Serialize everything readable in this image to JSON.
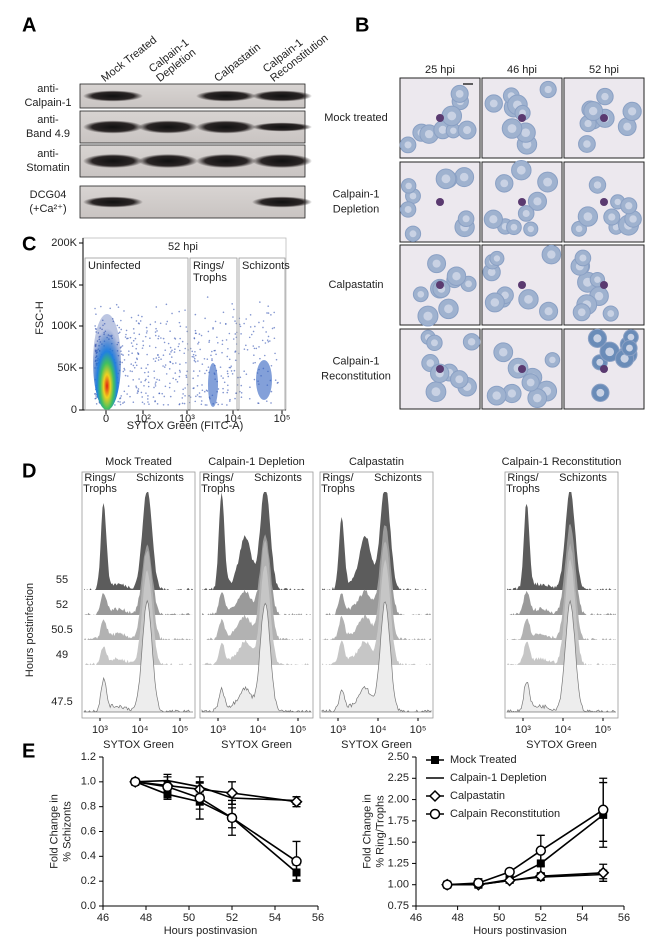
{
  "figure": {
    "A": {
      "label": "A",
      "lanes": [
        [
          "Mock Treated"
        ],
        [
          "Calpain-1",
          "Depletion"
        ],
        [
          "Calpastatin"
        ],
        [
          "Calpain-1",
          "Reconstitution"
        ]
      ],
      "blots": [
        [
          "anti-",
          "Calpain-1"
        ],
        [
          "anti-",
          "Band 4.9"
        ],
        [
          "anti-",
          "Stomatin"
        ],
        [
          "DCG04",
          "(+Ca²⁺)"
        ]
      ]
    },
    "B": {
      "label": "B",
      "columns": [
        "25 hpi",
        "46 hpi",
        "52 hpi"
      ],
      "rows": [
        [
          "Mock treated"
        ],
        [
          "Calpain-1",
          "Depletion"
        ],
        [
          "Calpastatin"
        ],
        [
          "Calpain-1",
          "Reconstitution"
        ]
      ]
    },
    "C": {
      "label": "C",
      "title": "52 hpi",
      "gates": [
        [
          "Uninfected"
        ],
        [
          "Rings/",
          "Trophs"
        ],
        [
          "Schizonts"
        ]
      ],
      "ylabel": "FSC-H",
      "xlabel": "SYTOX Green (FITC-A)",
      "yticks": [
        "0",
        "50K",
        "100K",
        "150K",
        "200K"
      ],
      "xticks": [
        "0",
        "10²",
        "10³",
        "10⁴",
        "10⁵"
      ]
    },
    "D": {
      "label": "D",
      "panels": [
        "Mock Treated",
        "Calpain-1 Depletion",
        "Calpastatin",
        "Calpain-1 Reconstitution"
      ],
      "gates": [
        [
          "Rings/",
          "Trophs"
        ],
        [
          "Schizonts"
        ]
      ],
      "hours": [
        "55",
        "52",
        "50.5",
        "49",
        "47.5"
      ],
      "ylabel": "Hours postinfection",
      "xlabel": "SYTOX Green",
      "xticks": [
        "10³",
        "10⁴",
        "10⁵"
      ]
    },
    "E": {
      "label": "E"
    }
  },
  "chart_data": [
    {
      "type": "line",
      "ylabel": [
        "Fold Change in",
        "% Schizonts"
      ],
      "xlabel": "Hours postinvasion",
      "x": [
        47.5,
        49,
        50.5,
        52,
        55
      ],
      "xlim": [
        46,
        56
      ],
      "xticks": [
        46,
        48,
        50,
        52,
        54,
        56
      ],
      "ylim": [
        0,
        1.2
      ],
      "yticks": [
        {
          "value": 0,
          "label": "0.0"
        },
        0.2,
        0.4,
        0.6,
        0.8,
        {
          "value": 1,
          "label": "1.0"
        },
        1.2
      ],
      "series": [
        {
          "marker": "square",
          "color": "#000000",
          "values": [
            1.0,
            0.9,
            0.84,
            0.71,
            0.27
          ],
          "errors": [
            0.02,
            0.04,
            0.06,
            0.08,
            0.06
          ]
        },
        {
          "marker": "none",
          "color": "#000000",
          "values": [
            1.0,
            1.01,
            0.96,
            0.87,
            0.85
          ],
          "errors": [
            0.02,
            0.03,
            0.04,
            0.05,
            0.03
          ]
        },
        {
          "marker": "diamond",
          "color": "#000000",
          "values": [
            1.0,
            0.97,
            0.94,
            0.91,
            0.84
          ],
          "errors": [
            0.02,
            0.03,
            0.05,
            0.09,
            0.04
          ]
        },
        {
          "marker": "circle",
          "color": "#000000",
          "values": [
            1.0,
            0.96,
            0.87,
            0.71,
            0.36
          ],
          "errors": [
            0.02,
            0.1,
            0.17,
            0.14,
            0.16
          ]
        }
      ]
    },
    {
      "type": "line",
      "ylabel": [
        "Fold Change in",
        "% Ring/Trophs"
      ],
      "xlabel": "Hours postinvasion",
      "x": [
        47.5,
        49,
        50.5,
        52,
        55
      ],
      "xlim": [
        46,
        56
      ],
      "xticks": [
        46,
        48,
        50,
        52,
        54,
        56
      ],
      "ylim": [
        0.75,
        2.5
      ],
      "yticks": [
        0.75,
        {
          "value": 1,
          "label": "1.00"
        },
        1.25,
        {
          "value": 1.5,
          "label": "1.50"
        },
        1.75,
        {
          "value": 2,
          "label": "2.00"
        },
        2.25,
        {
          "value": 2.5,
          "label": "2.50"
        }
      ],
      "legend": "upper-left",
      "series": [
        {
          "name": "Mock Treated",
          "marker": "square",
          "color": "#000000",
          "values": [
            1.0,
            1.0,
            1.06,
            1.25,
            1.82
          ],
          "errors": [
            0.02,
            0.03,
            0.04,
            0.12,
            0.38
          ]
        },
        {
          "name": "Calpain-1 Depletion",
          "marker": "none",
          "color": "#000000",
          "values": [
            1.0,
            1.0,
            1.05,
            1.09,
            1.12
          ],
          "errors": [
            0.02,
            0.02,
            0.03,
            0.04,
            0.05
          ]
        },
        {
          "name": "Calpastatin",
          "marker": "diamond",
          "color": "#000000",
          "values": [
            1.0,
            1.0,
            1.05,
            1.1,
            1.14
          ],
          "errors": [
            0.02,
            0.02,
            0.03,
            0.04,
            0.1
          ]
        },
        {
          "name": "Calpain Reconstitution",
          "marker": "circle",
          "color": "#000000",
          "values": [
            1.0,
            1.02,
            1.15,
            1.4,
            1.88
          ],
          "errors": [
            0.02,
            0.05,
            0.03,
            0.18,
            0.37
          ]
        }
      ]
    }
  ]
}
